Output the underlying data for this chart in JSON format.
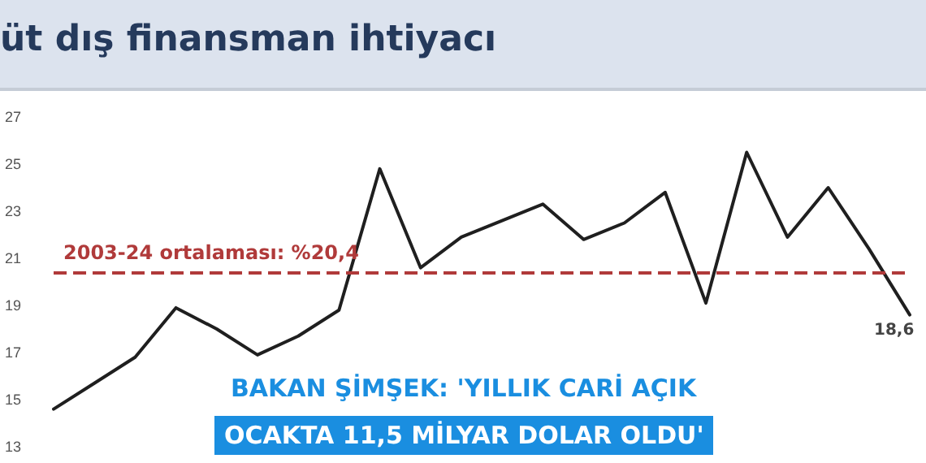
{
  "chart_data": {
    "type": "line",
    "title": "üt dış finansman ihtiyacı",
    "categories": [
      null,
      null,
      null,
      null,
      null,
      null,
      null,
      null,
      null,
      null,
      null,
      null,
      null,
      null,
      null,
      null,
      null,
      null,
      null,
      null,
      null,
      null
    ],
    "series": [
      {
        "color": "#1f1f1f",
        "values": [
          14.6,
          15.7,
          16.8,
          18.9,
          18.0,
          16.9,
          17.7,
          18.8,
          24.8,
          20.6,
          21.9,
          22.6,
          23.3,
          21.8,
          22.5,
          23.8,
          19.1,
          25.5,
          21.9,
          24.0,
          21.4,
          18.6
        ]
      }
    ],
    "ylim": [
      13,
      27
    ],
    "yticks": [
      13,
      15,
      17,
      19,
      21,
      23,
      25,
      27
    ],
    "tick_labels": "y",
    "grid": false,
    "marker": "none",
    "line_style": "solid",
    "ref_lines": [
      {
        "axis": "y",
        "value": 20.4,
        "label": "2003-24 ortalaması: %20,4",
        "color": "#b03a3a",
        "line_style": "dashed"
      }
    ],
    "annotations": [
      "18,6",
      "BAKAN ŞİMŞEK: 'YILLIK CARİ AÇIK",
      "OCAKTA 11,5 MİLYAR DOLAR OLDU'"
    ]
  }
}
